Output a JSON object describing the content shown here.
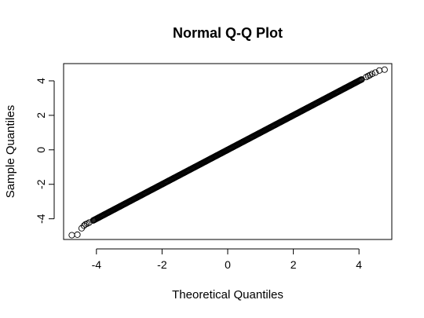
{
  "chart_data": {
    "type": "scatter",
    "title": "Normal Q-Q Plot",
    "xlabel": "Theoretical Quantiles",
    "ylabel": "Sample Quantiles",
    "xlim": [
      -5.0,
      5.0
    ],
    "ylim": [
      -5.2,
      5.0
    ],
    "x_ticks": [
      -4,
      -2,
      0,
      2,
      4
    ],
    "y_ticks": [
      -4,
      -2,
      0,
      2,
      4
    ],
    "x_tick_labels": [
      "-4",
      "-2",
      "0",
      "2",
      "4"
    ],
    "y_tick_labels": [
      "-4",
      "-2",
      "0",
      "2",
      "4"
    ],
    "grid": false,
    "legend": "none",
    "line_range": [
      -4.1,
      4.1
    ],
    "points": [
      [
        -4.75,
        -4.95
      ],
      [
        -4.58,
        -4.92
      ],
      [
        -4.45,
        -4.55
      ],
      [
        -4.38,
        -4.4
      ],
      [
        -4.33,
        -4.32
      ],
      [
        -4.28,
        -4.28
      ],
      [
        -4.22,
        -4.22
      ],
      [
        4.22,
        4.22
      ],
      [
        4.28,
        4.28
      ],
      [
        4.33,
        4.33
      ],
      [
        4.4,
        4.4
      ],
      [
        4.5,
        4.48
      ],
      [
        4.62,
        4.6
      ],
      [
        4.78,
        4.65
      ]
    ]
  }
}
